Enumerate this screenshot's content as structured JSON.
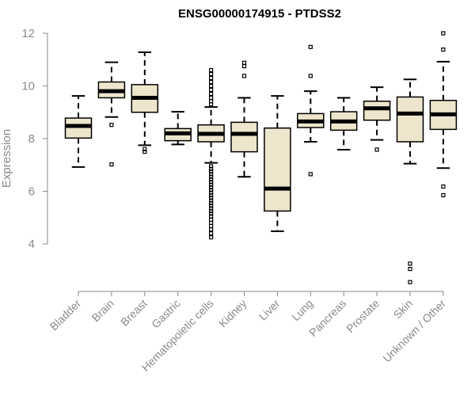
{
  "chart_data": {
    "type": "boxplot",
    "title": "ENSG00000174915 - PTDSS2",
    "xlabel": "",
    "ylabel": "Expression",
    "ylim": [
      2.1,
      12.1
    ],
    "yticks": [
      "4",
      "6",
      "8",
      "10",
      "12"
    ],
    "grid": false,
    "box_color": "#ede6cc",
    "categories": [
      "Bladder",
      "Brain",
      "Breast",
      "Gastric",
      "Hematopoietic cells",
      "Kidney",
      "Liver",
      "Lung",
      "Pancreas",
      "Prostate",
      "Skin",
      "Unknown / Other"
    ],
    "boxes": [
      {
        "q1": 8.02,
        "median": 8.48,
        "q3": 8.78,
        "whisker_low": 6.92,
        "whisker_high": 9.62,
        "outliers": []
      },
      {
        "q1": 9.55,
        "median": 9.8,
        "q3": 10.15,
        "whisker_low": 8.82,
        "whisker_high": 10.9,
        "outliers": [
          8.52,
          7.02
        ]
      },
      {
        "q1": 9.0,
        "median": 9.55,
        "q3": 10.05,
        "whisker_low": 7.75,
        "whisker_high": 11.28,
        "outliers": [
          7.6,
          7.5
        ]
      },
      {
        "q1": 7.92,
        "median": 8.2,
        "q3": 8.38,
        "whisker_low": 7.78,
        "whisker_high": 9.02,
        "outliers": []
      },
      {
        "q1": 7.88,
        "median": 8.18,
        "q3": 8.52,
        "whisker_low": 7.08,
        "whisker_high": 9.2,
        "outliers": [
          10.6,
          10.45,
          10.3,
          10.15,
          10.0,
          9.85,
          9.7,
          9.55,
          9.42,
          9.3,
          6.95,
          6.85,
          6.75,
          6.65,
          6.55,
          6.45,
          6.35,
          6.25,
          6.15,
          6.05,
          5.95,
          5.85,
          5.75,
          5.65,
          5.55,
          5.45,
          5.35,
          5.25,
          5.15,
          5.05,
          4.92,
          4.8,
          4.68,
          4.55,
          4.4,
          4.25
        ]
      },
      {
        "q1": 7.5,
        "median": 8.18,
        "q3": 8.62,
        "whisker_low": 6.55,
        "whisker_high": 9.55,
        "outliers": [
          10.88,
          10.75,
          10.38
        ]
      },
      {
        "q1": 5.25,
        "median": 6.1,
        "q3": 8.4,
        "whisker_low": 4.48,
        "whisker_high": 9.62,
        "outliers": []
      },
      {
        "q1": 8.42,
        "median": 8.65,
        "q3": 8.95,
        "whisker_low": 7.88,
        "whisker_high": 9.8,
        "outliers": [
          11.48,
          10.38,
          6.65
        ]
      },
      {
        "q1": 8.32,
        "median": 8.65,
        "q3": 9.02,
        "whisker_low": 7.58,
        "whisker_high": 9.55,
        "outliers": []
      },
      {
        "q1": 8.7,
        "median": 9.15,
        "q3": 9.42,
        "whisker_low": 7.95,
        "whisker_high": 9.95,
        "outliers": [
          7.58
        ]
      },
      {
        "q1": 7.88,
        "median": 8.95,
        "q3": 9.58,
        "whisker_low": 7.05,
        "whisker_high": 10.25,
        "outliers": [
          3.25,
          3.05,
          2.55
        ]
      },
      {
        "q1": 8.35,
        "median": 8.92,
        "q3": 9.45,
        "whisker_low": 6.88,
        "whisker_high": 10.92,
        "outliers": [
          12.0,
          11.38,
          6.18,
          5.85
        ]
      }
    ]
  }
}
